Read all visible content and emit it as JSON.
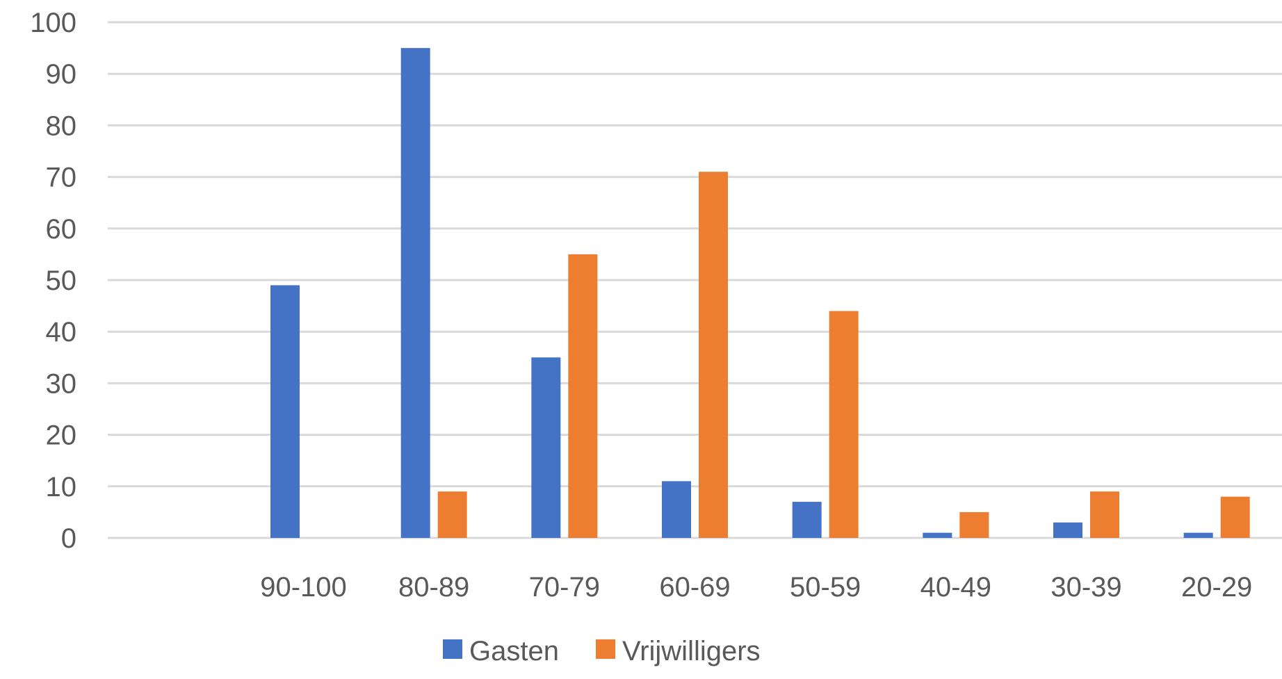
{
  "chart_data": {
    "type": "bar",
    "title": "",
    "xlabel": "",
    "ylabel": "",
    "categories": [
      "",
      "90-100",
      "80-89",
      "70-79",
      "60-69",
      "50-59",
      "40-49",
      "30-39",
      "20-29"
    ],
    "series": [
      {
        "name": "Gasten",
        "color": "#4472c4",
        "values": [
          0,
          49,
          95,
          35,
          11,
          7,
          1,
          3,
          1
        ]
      },
      {
        "name": "Vrijwilligers",
        "color": "#ed7d31",
        "values": [
          0,
          0,
          9,
          55,
          71,
          44,
          5,
          9,
          8
        ]
      }
    ],
    "ylim": [
      0,
      100
    ],
    "yticks": [
      0,
      10,
      20,
      30,
      40,
      50,
      60,
      70,
      80,
      90,
      100
    ],
    "grid": true,
    "legend_position": "bottom"
  }
}
